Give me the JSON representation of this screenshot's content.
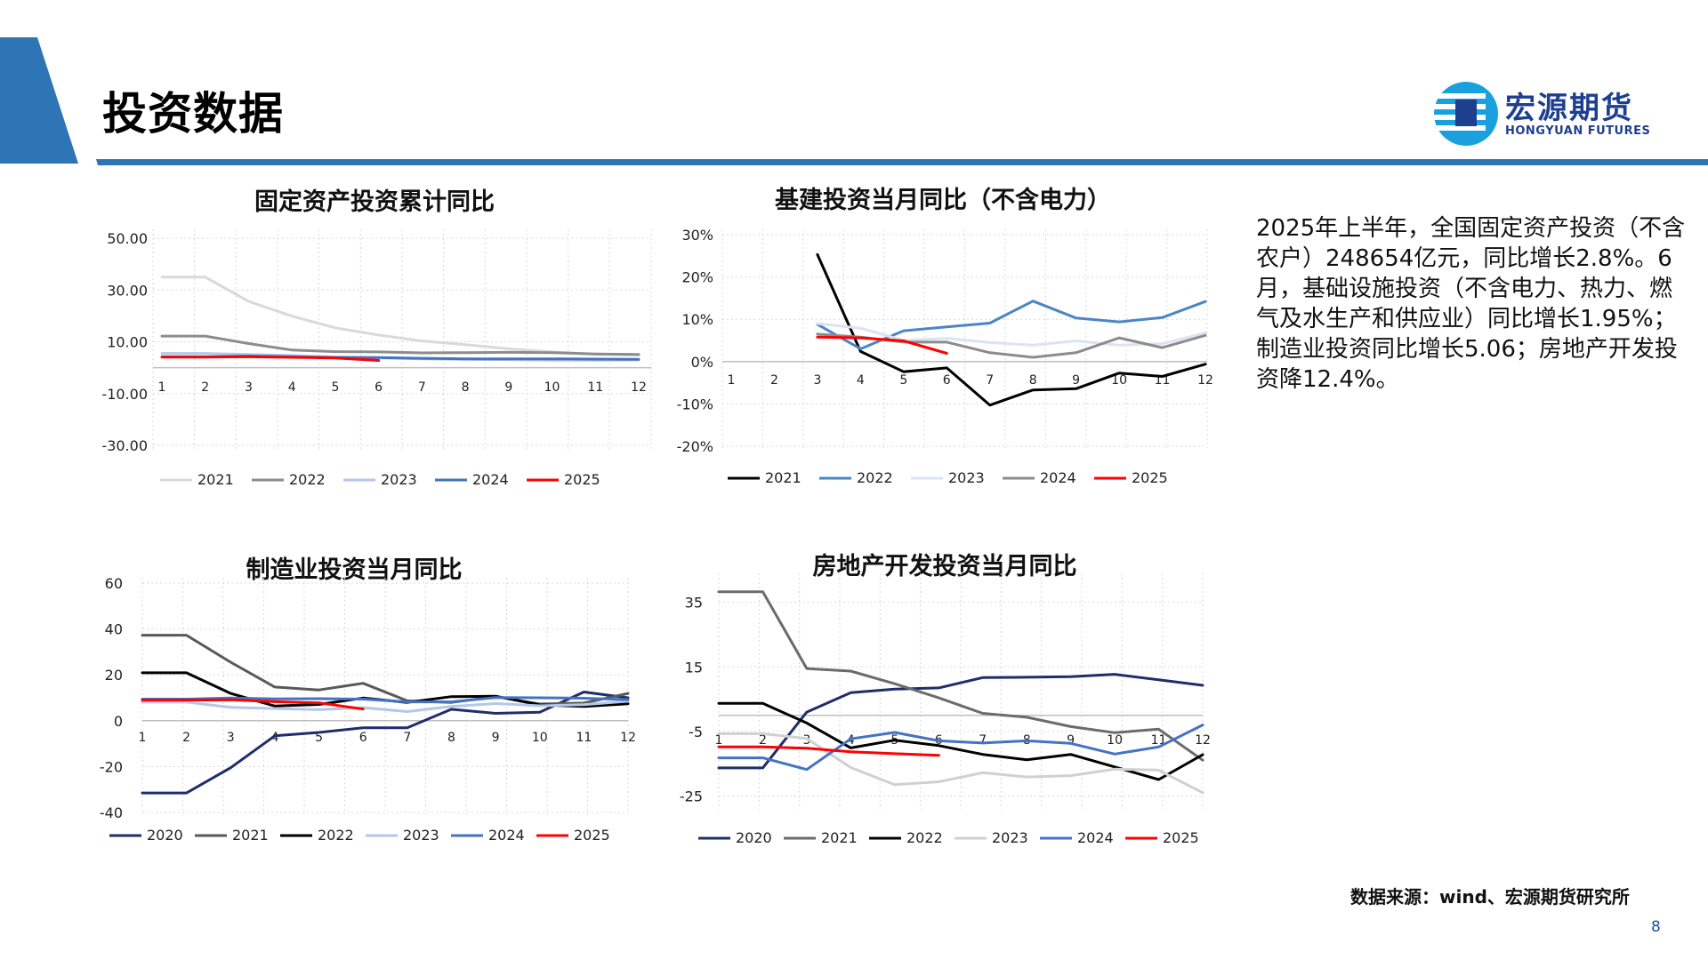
{
  "page": {
    "title": "投资数据",
    "logo_cn": "宏源期货",
    "logo_en": "HONGYUAN FUTURES",
    "summary": "2025年上半年，全国固定资产投资（不含农户）248654亿元，同比增长2.8%。6月，基础设施投资（不含电力、热力、燃气及水生产和供应业）同比增长1.95%；制造业投资同比增长5.06；房地产开发投资降12.4%。",
    "source": "数据来源：wind、宏源期货研究所",
    "page_number": "8",
    "colors": {
      "accent_blue": "#2e75b6",
      "logo_blue": "#1e3f8f"
    }
  },
  "chart_data": [
    {
      "type": "line",
      "title": "固定资产投资累计同比",
      "categories": [
        "1",
        "2",
        "3",
        "4",
        "5",
        "6",
        "7",
        "8",
        "9",
        "10",
        "11",
        "12"
      ],
      "ylim": [
        -30,
        50
      ],
      "yticks": [
        "50.00",
        "30.00",
        "10.00",
        "-10.00",
        "-30.00"
      ],
      "ytick_values": [
        50,
        30,
        10,
        -10,
        -30
      ],
      "grid": true,
      "legend": "bottom",
      "series": [
        {
          "name": "2021",
          "color": "#d9d9d9",
          "values": [
            35.0,
            35.0,
            25.6,
            19.9,
            15.4,
            12.6,
            10.3,
            8.9,
            7.3,
            6.1,
            5.2,
            4.9
          ]
        },
        {
          "name": "2022",
          "color": "#8c8c8c",
          "values": [
            12.2,
            12.2,
            9.3,
            6.8,
            6.2,
            6.1,
            5.7,
            5.8,
            5.9,
            5.8,
            5.3,
            5.1
          ]
        },
        {
          "name": "2023",
          "color": "#b4c7e7",
          "values": [
            5.5,
            5.5,
            5.1,
            4.7,
            4.0,
            3.8,
            3.4,
            3.2,
            3.1,
            2.9,
            2.9,
            3.0
          ]
        },
        {
          "name": "2024",
          "color": "#4472c4",
          "values": [
            4.2,
            4.2,
            4.5,
            4.2,
            4.0,
            3.9,
            3.6,
            3.4,
            3.4,
            3.4,
            3.3,
            3.2
          ]
        },
        {
          "name": "2025",
          "color": "#ff0000",
          "values": [
            4.1,
            4.1,
            4.2,
            4.0,
            3.7,
            2.8,
            null,
            null,
            null,
            null,
            null,
            null
          ]
        }
      ]
    },
    {
      "type": "line",
      "title": "基建投资当月同比（不含电力）",
      "categories": [
        "1",
        "2",
        "3",
        "4",
        "5",
        "6",
        "7",
        "8",
        "9",
        "10",
        "11",
        "12"
      ],
      "ylim": [
        -20,
        30
      ],
      "yticks": [
        "30%",
        "20%",
        "10%",
        "0%",
        "-10%",
        "-20%"
      ],
      "ytick_values": [
        30,
        20,
        10,
        0,
        -10,
        -20
      ],
      "grid": true,
      "legend": "bottom",
      "series": [
        {
          "name": "2021",
          "color": "#000000",
          "values": [
            null,
            null,
            25.3,
            2.4,
            -2.4,
            -1.5,
            -10.3,
            -6.7,
            -6.4,
            -2.7,
            -3.5,
            -0.6
          ]
        },
        {
          "name": "2022",
          "color": "#4a86c5",
          "values": [
            null,
            null,
            8.8,
            3.0,
            7.3,
            8.2,
            9.1,
            14.3,
            10.3,
            9.4,
            10.4,
            14.2
          ]
        },
        {
          "name": "2023",
          "color": "#dae3f3",
          "values": [
            null,
            null,
            9.0,
            7.9,
            5.0,
            5.5,
            4.5,
            3.9,
            4.9,
            3.9,
            4.2,
            6.8
          ]
        },
        {
          "name": "2024",
          "color": "#8c8c8c",
          "values": [
            null,
            null,
            6.5,
            5.8,
            4.6,
            4.6,
            2.1,
            1.0,
            2.1,
            5.6,
            3.3,
            6.2
          ]
        },
        {
          "name": "2025",
          "color": "#ff0000",
          "values": [
            null,
            null,
            5.8,
            5.6,
            4.9,
            1.95,
            null,
            null,
            null,
            null,
            null,
            null
          ]
        }
      ]
    },
    {
      "type": "line",
      "title": "制造业投资当月同比",
      "categories": [
        "1",
        "2",
        "3",
        "4",
        "5",
        "6",
        "7",
        "8",
        "9",
        "10",
        "11",
        "12"
      ],
      "ylim": [
        -40,
        60
      ],
      "yticks": [
        "60",
        "40",
        "20",
        "0",
        "-20",
        "-40"
      ],
      "ytick_values": [
        60,
        40,
        20,
        0,
        -20,
        -40
      ],
      "grid": true,
      "legend": "bottom",
      "series": [
        {
          "name": "2020",
          "color": "#1f2d6b",
          "values": [
            -31.5,
            -31.5,
            -20.5,
            -6.6,
            -5.1,
            -3.1,
            -3.1,
            5.0,
            3.2,
            3.7,
            12.5,
            10.0
          ]
        },
        {
          "name": "2021",
          "color": "#595959",
          "values": [
            37.3,
            37.3,
            25.5,
            14.7,
            13.4,
            16.3,
            8.7,
            8.0,
            10.5,
            7.3,
            7.7,
            11.9
          ]
        },
        {
          "name": "2022",
          "color": "#000000",
          "values": [
            20.9,
            20.9,
            11.9,
            6.4,
            7.1,
            9.9,
            8.0,
            10.5,
            10.7,
            6.9,
            6.2,
            7.4
          ]
        },
        {
          "name": "2023",
          "color": "#b4c7e7",
          "values": [
            8.1,
            8.1,
            5.8,
            5.3,
            4.8,
            5.7,
            4.0,
            6.2,
            7.5,
            6.5,
            7.0,
            8.5
          ]
        },
        {
          "name": "2024",
          "color": "#4472c4",
          "values": [
            9.4,
            9.4,
            9.9,
            9.5,
            9.6,
            9.4,
            8.2,
            8.2,
            10.1,
            10.0,
            9.8,
            9.2
          ]
        },
        {
          "name": "2025",
          "color": "#ff0000",
          "values": [
            9.0,
            9.0,
            9.1,
            8.3,
            7.8,
            5.06,
            null,
            null,
            null,
            null,
            null,
            null
          ]
        }
      ]
    },
    {
      "type": "line",
      "title": "房地产开发投资当月同比",
      "categories": [
        "1",
        "2",
        "3",
        "4",
        "5",
        "6",
        "7",
        "8",
        "9",
        "10",
        "11",
        "12"
      ],
      "ylim": [
        -29,
        44
      ],
      "yticks": [
        "35",
        "15",
        "-5",
        "-25"
      ],
      "ytick_values": [
        35,
        15,
        -5,
        -25
      ],
      "grid": true,
      "legend": "bottom",
      "series": [
        {
          "name": "2020",
          "color": "#1f2d6b",
          "values": [
            -16.3,
            -16.3,
            1.0,
            7.0,
            8.1,
            8.5,
            11.7,
            11.8,
            12.0,
            12.7,
            11.0,
            9.3
          ]
        },
        {
          "name": "2021",
          "color": "#6b6b6b",
          "values": [
            38.3,
            38.3,
            14.5,
            13.7,
            9.8,
            5.4,
            0.6,
            -0.6,
            -3.5,
            -5.4,
            -4.3,
            -13.9
          ]
        },
        {
          "name": "2022",
          "color": "#000000",
          "values": [
            3.7,
            3.7,
            -2.4,
            -10.1,
            -7.7,
            -9.4,
            -12.1,
            -13.8,
            -12.1,
            -16.0,
            -19.9,
            -12.2
          ]
        },
        {
          "name": "2023",
          "color": "#d0d0d0",
          "values": [
            -5.7,
            -5.7,
            -7.2,
            -16.2,
            -21.5,
            -20.6,
            -17.8,
            -19.1,
            -18.7,
            -16.7,
            -17.0,
            -24.0
          ]
        },
        {
          "name": "2024",
          "color": "#4472c4",
          "values": [
            -13.2,
            -13.2,
            -16.8,
            -7.3,
            -5.3,
            -7.9,
            -8.6,
            -7.9,
            -8.7,
            -12.0,
            -9.8,
            -3.0
          ]
        },
        {
          "name": "2025",
          "color": "#ff0000",
          "values": [
            -9.8,
            -9.8,
            -10.2,
            -11.3,
            -11.9,
            -12.4,
            null,
            null,
            null,
            null,
            null,
            null
          ]
        }
      ]
    }
  ]
}
